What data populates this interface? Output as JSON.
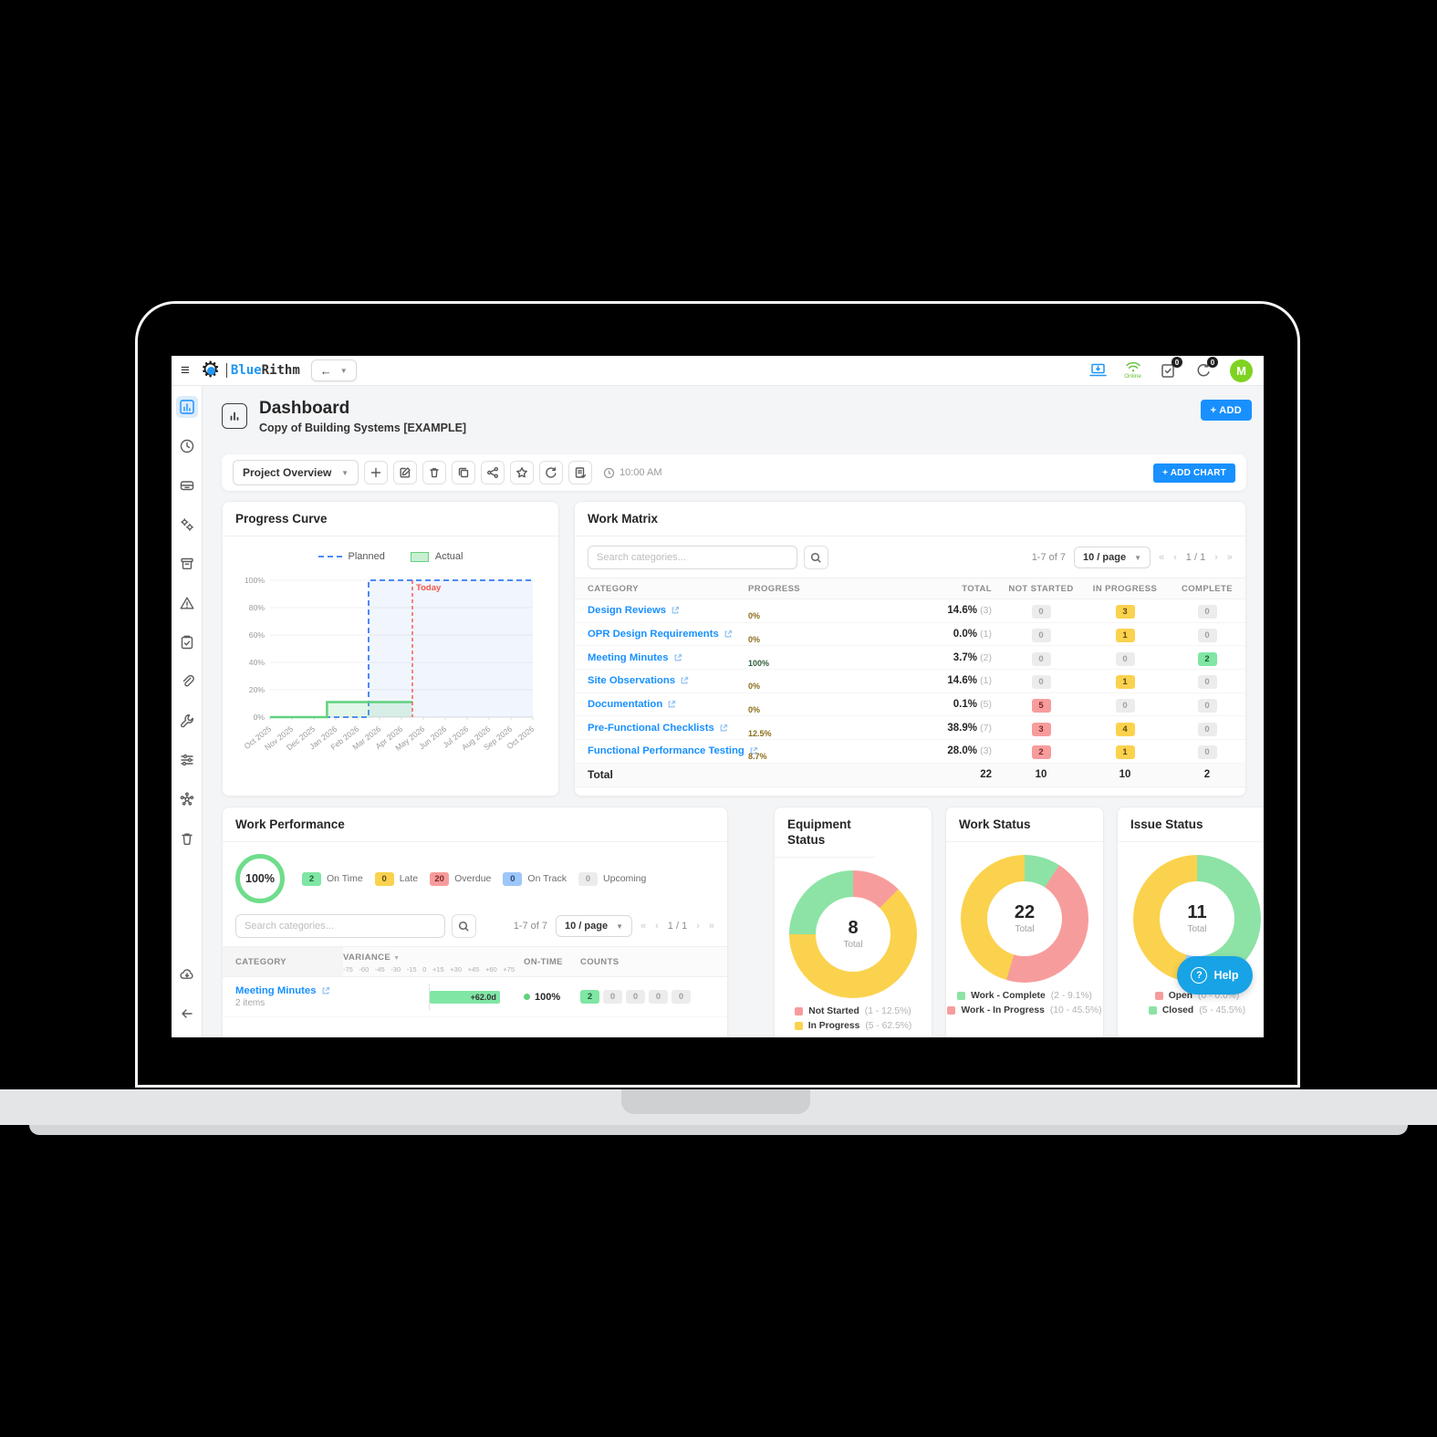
{
  "topbar": {
    "brand_blue": "Blue",
    "brand_rithm": "Rithm",
    "back_arrow": "←",
    "online_label": "Online",
    "tasks_badge": "0",
    "sync_badge": "0",
    "avatar_initial": "M"
  },
  "sidebar": {
    "icons": [
      "dashboard",
      "history",
      "equipment",
      "settings",
      "archive",
      "issues",
      "checklists",
      "attachments",
      "tools",
      "filters",
      "integrations",
      "trash",
      "offline-sync",
      "collapse"
    ]
  },
  "page_header": {
    "title": "Dashboard",
    "subtitle": "Copy of Building Systems [EXAMPLE]",
    "add_button": "+ ADD"
  },
  "toolbar": {
    "view_selector": "Project Overview",
    "timestamp": "10:00 AM",
    "add_chart_button": "+ ADD CHART"
  },
  "progress_curve": {
    "title": "Progress Curve",
    "legend": {
      "planned": "Planned",
      "actual": "Actual"
    },
    "chart_data": {
      "type": "line",
      "x": [
        "Oct 2025",
        "Nov 2025",
        "Dec 2025",
        "Jan 2026",
        "Feb 2026",
        "Mar 2026",
        "Apr 2026",
        "May 2026",
        "Jun 2026",
        "Jul 2026",
        "Aug 2026",
        "Sep 2026",
        "Oct 2026"
      ],
      "yticks": [
        "0%",
        "20%",
        "40%",
        "60%",
        "80%",
        "100%"
      ],
      "ylim": [
        0,
        100
      ],
      "planned_points": [
        [
          0,
          0
        ],
        [
          4.5,
          0
        ],
        [
          4.5,
          100
        ],
        [
          12,
          100
        ]
      ],
      "actual_points": [
        [
          0,
          0
        ],
        [
          2.6,
          0
        ],
        [
          2.6,
          11
        ],
        [
          6.5,
          11
        ]
      ],
      "planned_color": "#4b8bf5",
      "actual_color": "#5fd27d",
      "today_x": 6.5,
      "today_label": "Today",
      "today_color": "#f5564a"
    }
  },
  "work_matrix": {
    "title": "Work Matrix",
    "search_placeholder": "Search categories...",
    "range_label": "1-7 of 7",
    "page_size": "10 / page",
    "page_indicator": "1 / 1",
    "columns": [
      "CATEGORY",
      "PROGRESS",
      "TOTAL",
      "NOT STARTED",
      "IN PROGRESS",
      "COMPLETE"
    ],
    "rows": [
      {
        "category": "Design Reviews",
        "progress_pct": 0,
        "progress_label": "0%",
        "bar_color": "none",
        "total": "14.6%",
        "total_count": "(3)",
        "cells": [
          {
            "v": "0",
            "c": "gray"
          },
          {
            "v": "3",
            "c": "yellow"
          },
          {
            "v": "0",
            "c": "gray"
          }
        ]
      },
      {
        "category": "OPR Design Requirements",
        "progress_pct": 0,
        "progress_label": "0%",
        "bar_color": "none",
        "total": "0.0%",
        "total_count": "(1)",
        "cells": [
          {
            "v": "0",
            "c": "gray"
          },
          {
            "v": "1",
            "c": "yellow"
          },
          {
            "v": "0",
            "c": "gray"
          }
        ]
      },
      {
        "category": "Meeting Minutes",
        "progress_pct": 100,
        "progress_label": "100%",
        "bar_color": "green",
        "total": "3.7%",
        "total_count": "(2)",
        "cells": [
          {
            "v": "0",
            "c": "gray"
          },
          {
            "v": "0",
            "c": "gray"
          },
          {
            "v": "2",
            "c": "green"
          }
        ]
      },
      {
        "category": "Site Observations",
        "progress_pct": 0,
        "progress_label": "0%",
        "bar_color": "none",
        "total": "14.6%",
        "total_count": "(1)",
        "cells": [
          {
            "v": "0",
            "c": "gray"
          },
          {
            "v": "1",
            "c": "yellow"
          },
          {
            "v": "0",
            "c": "gray"
          }
        ]
      },
      {
        "category": "Documentation",
        "progress_pct": 0,
        "progress_label": "0%",
        "bar_color": "none",
        "total": "0.1%",
        "total_count": "(5)",
        "cells": [
          {
            "v": "5",
            "c": "red"
          },
          {
            "v": "0",
            "c": "gray"
          },
          {
            "v": "0",
            "c": "gray"
          }
        ]
      },
      {
        "category": "Pre-Functional Checklists",
        "progress_pct": 12.5,
        "progress_label": "12.5%",
        "bar_color": "yellow",
        "total": "38.9%",
        "total_count": "(7)",
        "cells": [
          {
            "v": "3",
            "c": "red"
          },
          {
            "v": "4",
            "c": "yellow"
          },
          {
            "v": "0",
            "c": "gray"
          }
        ]
      },
      {
        "category": "Functional Performance Testing",
        "progress_pct": 8.7,
        "progress_label": "8.7%",
        "bar_color": "yellow",
        "total": "28.0%",
        "total_count": "(3)",
        "cells": [
          {
            "v": "2",
            "c": "red"
          },
          {
            "v": "1",
            "c": "yellow"
          },
          {
            "v": "0",
            "c": "gray"
          }
        ]
      }
    ],
    "total_row": {
      "label": "Total",
      "total": "22",
      "not_started": "10",
      "in_progress": "10",
      "complete": "2"
    }
  },
  "work_performance": {
    "title": "Work Performance",
    "overall_pct": "100%",
    "summary_badges": [
      {
        "value": "2",
        "label": "On Time",
        "color": "green"
      },
      {
        "value": "0",
        "label": "Late",
        "color": "yellow"
      },
      {
        "value": "20",
        "label": "Overdue",
        "color": "red"
      },
      {
        "value": "0",
        "label": "On Track",
        "color": "blue"
      },
      {
        "value": "0",
        "label": "Upcoming",
        "color": "gray"
      }
    ],
    "search_placeholder": "Search categories...",
    "range_label": "1-7 of 7",
    "page_size": "10 / page",
    "page_indicator": "1 / 1",
    "table": {
      "category_col": "CATEGORY",
      "variance_col": "VARIANCE",
      "on_time_col": "ON-TIME",
      "counts_col": "COUNTS",
      "variance_ticks": [
        "-75",
        "-60",
        "-45",
        "-30",
        "-15",
        "0",
        "+15",
        "+30",
        "+45",
        "+60",
        "+75"
      ],
      "variance_scale_max": 75,
      "rows": [
        {
          "category": "Meeting Minutes",
          "items_label": "2 items",
          "variance_days": 62,
          "variance_label": "+62.0d",
          "on_time": "100%",
          "counts": [
            {
              "v": "2",
              "c": "green"
            },
            {
              "v": "0",
              "c": "gray"
            },
            {
              "v": "0",
              "c": "gray"
            },
            {
              "v": "0",
              "c": "gray"
            },
            {
              "v": "0",
              "c": "gray"
            }
          ]
        }
      ]
    }
  },
  "status_cards": [
    {
      "title": "Equipment Status",
      "total": "8",
      "total_label": "Total",
      "segments": [
        {
          "color": "#f79c9c",
          "pct": 12.5
        },
        {
          "color": "#fbd24e",
          "pct": 62.5
        },
        {
          "color": "#8ce3a5",
          "pct": 25
        }
      ],
      "legend": [
        {
          "color": "#f79c9c",
          "label": "Not Started",
          "detail": "(1 - 12.5%)"
        },
        {
          "color": "#fbd24e",
          "label": "In Progress",
          "detail": "(5 - 62.5%)"
        }
      ]
    },
    {
      "title": "Work Status",
      "total": "22",
      "total_label": "Total",
      "segments": [
        {
          "color": "#8ce3a5",
          "pct": 9.1
        },
        {
          "color": "#f79c9c",
          "pct": 45.5
        },
        {
          "color": "#fbd24e",
          "pct": 45.4
        }
      ],
      "legend": [
        {
          "color": "#8ce3a5",
          "label": "Work - Complete",
          "detail": "(2 - 9.1%)"
        },
        {
          "color": "#f79c9c",
          "label": "Work - In Progress",
          "detail": "(10 - 45.5%)"
        }
      ]
    },
    {
      "title": "Issue Status",
      "total": "11",
      "total_label": "Total",
      "segments": [
        {
          "color": "#8ce3a5",
          "pct": 45.5
        },
        {
          "color": "#9cc7f8",
          "pct": 9.0
        },
        {
          "color": "#fbd24e",
          "pct": 45.5
        }
      ],
      "legend": [
        {
          "color": "#f79c9c",
          "label": "Open",
          "detail": "(0 - 0.0%)"
        },
        {
          "color": "#8ce3a5",
          "label": "Closed",
          "detail": "(5 - 45.5%)"
        }
      ]
    }
  ],
  "help_button": {
    "label": "Help",
    "icon": "?"
  },
  "colors": {
    "primary_blue": "#1890ff",
    "help_blue": "#17a3e6",
    "green": "#7fe6a4",
    "yellow": "#fbd24e",
    "red": "#f79c9c",
    "blue_badge": "#9cc7f8",
    "avatar_green": "#7ed321"
  }
}
